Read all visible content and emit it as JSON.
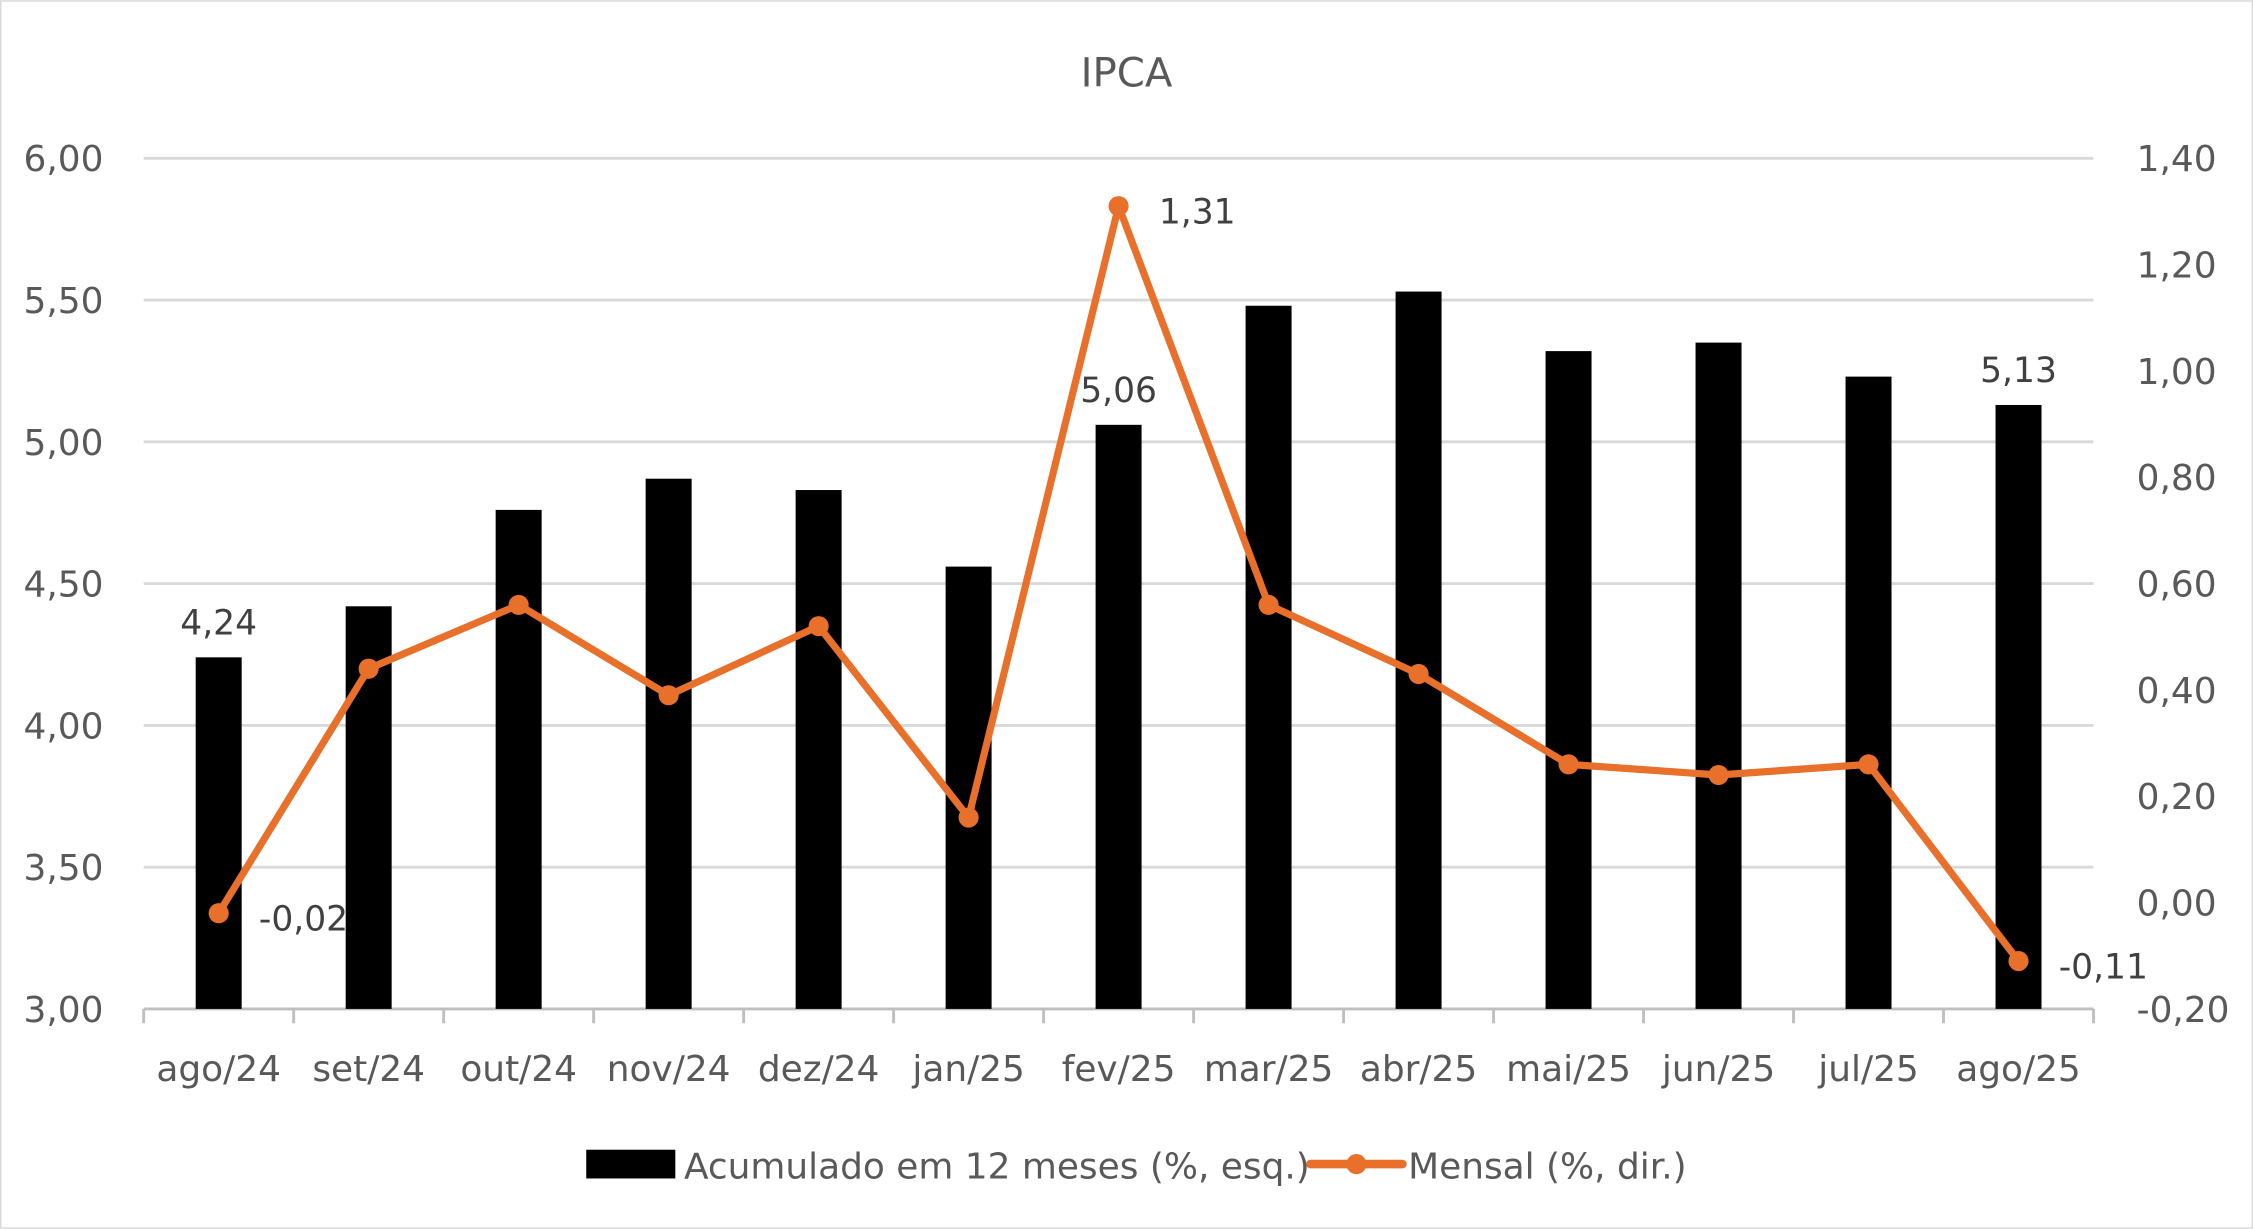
{
  "chart_data": {
    "type": "bar+line",
    "title": "IPCA",
    "categories": [
      "ago/24",
      "set/24",
      "out/24",
      "nov/24",
      "dez/24",
      "jan/25",
      "fev/25",
      "mar/25",
      "abr/25",
      "mai/25",
      "jun/25",
      "jul/25",
      "ago/25"
    ],
    "series": [
      {
        "name": "Acumulado em 12 meses (%, esq.)",
        "type": "bar",
        "axis": "left",
        "color": "#000000",
        "values": [
          4.24,
          4.42,
          4.76,
          4.87,
          4.83,
          4.56,
          5.06,
          5.48,
          5.53,
          5.32,
          5.35,
          5.23,
          5.13
        ],
        "data_labels": {
          "0": "4,24",
          "6": "5,06",
          "12": "5,13"
        }
      },
      {
        "name": "Mensal (%, dir.)",
        "type": "line",
        "axis": "right",
        "color": "#E8702A",
        "values": [
          -0.02,
          0.44,
          0.56,
          0.39,
          0.52,
          0.16,
          1.31,
          0.56,
          0.43,
          0.26,
          0.24,
          0.26,
          -0.11
        ],
        "data_labels": {
          "0": "-0,02",
          "6": "1,31",
          "12": "-0,11"
        }
      }
    ],
    "left_axis": {
      "ylim": [
        3.0,
        6.0
      ],
      "ticks": [
        "3,00",
        "3,50",
        "4,00",
        "4,50",
        "5,00",
        "5,50",
        "6,00"
      ]
    },
    "right_axis": {
      "ylim": [
        -0.2,
        1.4
      ],
      "ticks": [
        "-0,20",
        "0,00",
        "0,20",
        "0,40",
        "0,60",
        "0,80",
        "1,00",
        "1,20",
        "1,40"
      ]
    },
    "grid": true,
    "legend": "bottom"
  }
}
